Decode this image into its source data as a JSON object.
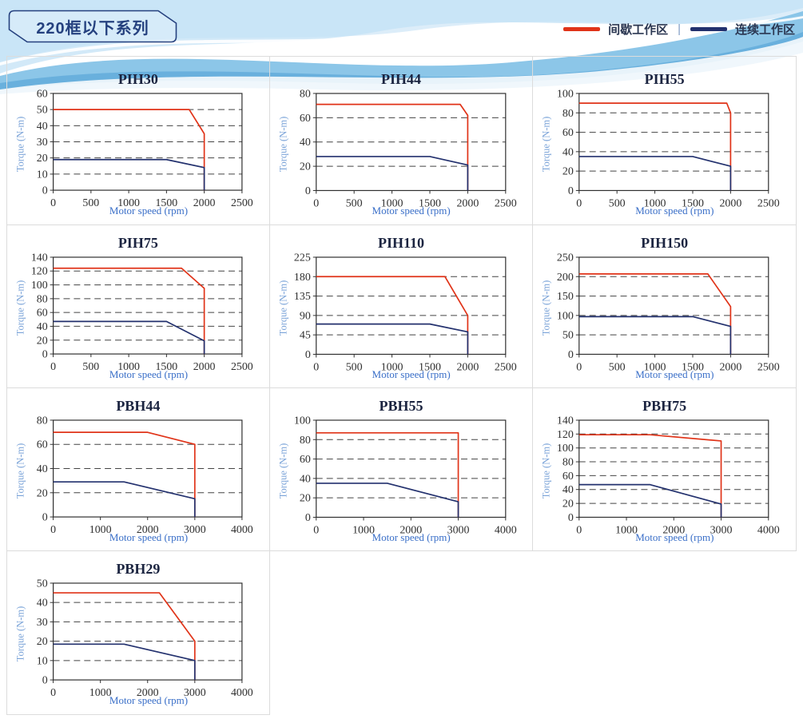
{
  "page": {
    "badge_title": "220框以下系列"
  },
  "legend": {
    "intermittent_label": "间歇工作区",
    "separator": "|",
    "continuous_label": "连续工作区",
    "intermittent_color": "#e03318",
    "continuous_color": "#23316e"
  },
  "style": {
    "frame_color": "#2f2f2f",
    "grid_color": "#444444",
    "title_color": "#1b2440",
    "xlabel_color": "#3a6fc8",
    "ylabel_color": "#7aa3d8"
  },
  "chart_data": [
    {
      "type": "line",
      "title": "PIH30",
      "xlabel": "Motor speed (rpm)",
      "ylabel": "Torque (N-m)",
      "xlim": [
        0,
        2500
      ],
      "xstep": 500,
      "ylim": [
        0,
        60
      ],
      "ystep": 10,
      "grid": "horizontal-dashed",
      "series": [
        {
          "name": "间歇工作区",
          "color": "#e03318",
          "points": [
            [
              0,
              50
            ],
            [
              1800,
              50
            ],
            [
              2000,
              35
            ],
            [
              2000,
              0
            ]
          ]
        },
        {
          "name": "连续工作区",
          "color": "#23316e",
          "points": [
            [
              0,
              19
            ],
            [
              1500,
              19
            ],
            [
              2000,
              14
            ],
            [
              2000,
              0
            ]
          ]
        }
      ]
    },
    {
      "type": "line",
      "title": "PIH44",
      "xlabel": "Motor speed (rpm)",
      "ylabel": "Torque (N-m)",
      "xlim": [
        0,
        2500
      ],
      "xstep": 500,
      "ylim": [
        0,
        80
      ],
      "ystep": 20,
      "grid": "horizontal-dashed",
      "series": [
        {
          "name": "间歇工作区",
          "color": "#e03318",
          "points": [
            [
              0,
              71
            ],
            [
              1900,
              71
            ],
            [
              2000,
              62
            ],
            [
              2000,
              0
            ]
          ]
        },
        {
          "name": "连续工作区",
          "color": "#23316e",
          "points": [
            [
              0,
              28
            ],
            [
              1500,
              28
            ],
            [
              2000,
              21
            ],
            [
              2000,
              0
            ]
          ]
        }
      ]
    },
    {
      "type": "line",
      "title": "PIH55",
      "xlabel": "Motor speed (rpm)",
      "ylabel": "Torque (N-m)",
      "xlim": [
        0,
        2500
      ],
      "xstep": 500,
      "ylim": [
        0,
        100
      ],
      "ystep": 20,
      "grid": "horizontal-dashed",
      "series": [
        {
          "name": "间歇工作区",
          "color": "#e03318",
          "points": [
            [
              0,
              90
            ],
            [
              1950,
              90
            ],
            [
              2000,
              80
            ],
            [
              2000,
              0
            ]
          ]
        },
        {
          "name": "连续工作区",
          "color": "#23316e",
          "points": [
            [
              0,
              35
            ],
            [
              1500,
              35
            ],
            [
              2000,
              25
            ],
            [
              2000,
              0
            ]
          ]
        }
      ]
    },
    {
      "type": "line",
      "title": "PIH75",
      "xlabel": "Motor speed (rpm)",
      "ylabel": "Torque (N-m)",
      "xlim": [
        0,
        2500
      ],
      "xstep": 500,
      "ylim": [
        0,
        140
      ],
      "ystep": 20,
      "grid": "horizontal-dashed",
      "series": [
        {
          "name": "间歇工作区",
          "color": "#e03318",
          "points": [
            [
              0,
              124
            ],
            [
              1700,
              124
            ],
            [
              2000,
              95
            ],
            [
              2000,
              0
            ]
          ]
        },
        {
          "name": "连续工作区",
          "color": "#23316e",
          "points": [
            [
              0,
              47
            ],
            [
              1500,
              47
            ],
            [
              2000,
              19
            ],
            [
              2000,
              0
            ]
          ]
        }
      ]
    },
    {
      "type": "line",
      "title": "PIH110",
      "xlabel": "Motor speed (rpm)",
      "ylabel": "Torque (N-m)",
      "xlim": [
        0,
        2500
      ],
      "xstep": 500,
      "ylim": [
        0,
        225
      ],
      "ystep": 45,
      "grid": "horizontal-dashed",
      "series": [
        {
          "name": "间歇工作区",
          "color": "#e03318",
          "points": [
            [
              0,
              180
            ],
            [
              1700,
              180
            ],
            [
              2000,
              90
            ],
            [
              2000,
              0
            ]
          ]
        },
        {
          "name": "连续工作区",
          "color": "#23316e",
          "points": [
            [
              0,
              70
            ],
            [
              1500,
              70
            ],
            [
              2000,
              52
            ],
            [
              2000,
              0
            ]
          ]
        }
      ]
    },
    {
      "type": "line",
      "title": "PIH150",
      "xlabel": "Motor speed (rpm)",
      "ylabel": "Torque (N-m)",
      "xlim": [
        0,
        2500
      ],
      "xstep": 500,
      "ylim": [
        0,
        250
      ],
      "ystep": 50,
      "grid": "horizontal-dashed",
      "series": [
        {
          "name": "间歇工作区",
          "color": "#e03318",
          "points": [
            [
              0,
              207
            ],
            [
              1700,
              207
            ],
            [
              2000,
              123
            ],
            [
              2000,
              0
            ]
          ]
        },
        {
          "name": "连续工作区",
          "color": "#23316e",
          "points": [
            [
              0,
              97
            ],
            [
              1500,
              97
            ],
            [
              2000,
              72
            ],
            [
              2000,
              0
            ]
          ]
        }
      ]
    },
    {
      "type": "line",
      "title": "PBH44",
      "xlabel": "Motor speed (rpm)",
      "ylabel": "Torque (N-m)",
      "xlim": [
        0,
        4000
      ],
      "xstep": 1000,
      "ylim": [
        0,
        80
      ],
      "ystep": 20,
      "grid": "horizontal-dashed",
      "series": [
        {
          "name": "间歇工作区",
          "color": "#e03318",
          "points": [
            [
              0,
              70
            ],
            [
              2000,
              70
            ],
            [
              3000,
              60
            ],
            [
              3000,
              0
            ]
          ]
        },
        {
          "name": "连续工作区",
          "color": "#23316e",
          "points": [
            [
              0,
              29
            ],
            [
              1500,
              29
            ],
            [
              3000,
              15
            ],
            [
              3000,
              0
            ]
          ]
        }
      ]
    },
    {
      "type": "line",
      "title": "PBH55",
      "xlabel": "Motor speed (rpm)",
      "ylabel": "Torque (N-m)",
      "xlim": [
        0,
        4000
      ],
      "xstep": 1000,
      "ylim": [
        0,
        100
      ],
      "ystep": 20,
      "grid": "horizontal-dashed",
      "series": [
        {
          "name": "间歇工作区",
          "color": "#e03318",
          "points": [
            [
              0,
              87
            ],
            [
              3000,
              87
            ],
            [
              3000,
              0
            ]
          ]
        },
        {
          "name": "连续工作区",
          "color": "#23316e",
          "points": [
            [
              0,
              35
            ],
            [
              1500,
              35
            ],
            [
              3000,
              16
            ],
            [
              3000,
              0
            ]
          ]
        }
      ]
    },
    {
      "type": "line",
      "title": "PBH75",
      "xlabel": "Motor speed (rpm)",
      "ylabel": "Torque (N-m)",
      "xlim": [
        0,
        4000
      ],
      "xstep": 1000,
      "ylim": [
        0,
        140
      ],
      "ystep": 20,
      "grid": "horizontal-dashed",
      "series": [
        {
          "name": "间歇工作区",
          "color": "#e03318",
          "points": [
            [
              0,
              119
            ],
            [
              1500,
              119
            ],
            [
              3000,
              110
            ],
            [
              3000,
              0
            ]
          ]
        },
        {
          "name": "连续工作区",
          "color": "#23316e",
          "points": [
            [
              0,
              47
            ],
            [
              1500,
              47
            ],
            [
              3000,
              19
            ],
            [
              3000,
              0
            ]
          ]
        }
      ]
    },
    {
      "type": "line",
      "title": "PBH29",
      "xlabel": "Motor speed (rpm)",
      "ylabel": "Torque (N-m)",
      "xlim": [
        0,
        4000
      ],
      "xstep": 1000,
      "ylim": [
        0,
        50
      ],
      "ystep": 10,
      "grid": "horizontal-dashed",
      "series": [
        {
          "name": "间歇工作区",
          "color": "#e03318",
          "points": [
            [
              0,
              45
            ],
            [
              2250,
              45
            ],
            [
              3000,
              20
            ],
            [
              3000,
              0
            ]
          ]
        },
        {
          "name": "连续工作区",
          "color": "#23316e",
          "points": [
            [
              0,
              18.5
            ],
            [
              1500,
              18.5
            ],
            [
              3000,
              10
            ],
            [
              3000,
              0
            ]
          ]
        }
      ]
    }
  ]
}
